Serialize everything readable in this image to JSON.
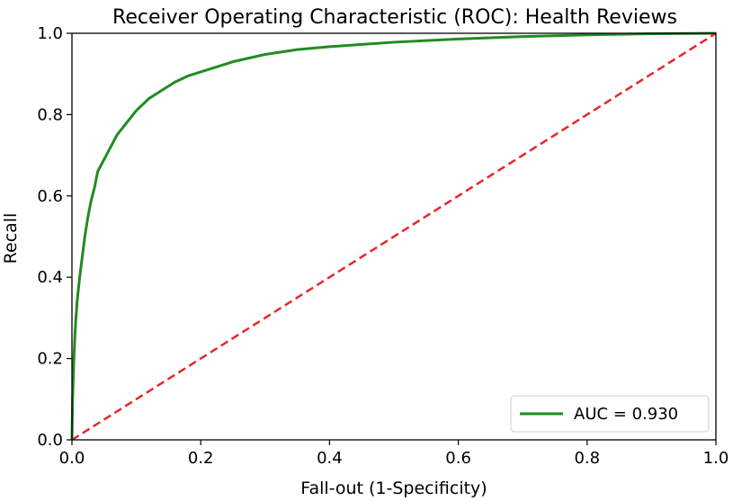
{
  "chart_data": {
    "type": "line",
    "title": "Receiver Operating Characteristic (ROC): Health Reviews",
    "xlabel": "Fall-out (1-Specificity)",
    "ylabel": "Recall",
    "xlim": [
      0.0,
      1.0
    ],
    "ylim": [
      0.0,
      1.0
    ],
    "xticks": [
      "0.0",
      "0.2",
      "0.4",
      "0.6",
      "0.8",
      "1.0"
    ],
    "yticks": [
      "0.0",
      "0.2",
      "0.4",
      "0.6",
      "0.8",
      "1.0"
    ],
    "grid": false,
    "legend_position": "lower-right",
    "series": [
      {
        "name": "AUC = 0.930",
        "color": "#228b22",
        "style": "solid",
        "x": [
          0.0,
          0.001,
          0.003,
          0.005,
          0.008,
          0.012,
          0.016,
          0.02,
          0.025,
          0.03,
          0.035,
          0.04,
          0.05,
          0.06,
          0.07,
          0.08,
          0.09,
          0.1,
          0.12,
          0.14,
          0.16,
          0.18,
          0.2,
          0.25,
          0.3,
          0.35,
          0.4,
          0.5,
          0.6,
          0.7,
          0.8,
          0.9,
          1.0
        ],
        "y": [
          0.0,
          0.1,
          0.2,
          0.27,
          0.34,
          0.4,
          0.45,
          0.5,
          0.55,
          0.59,
          0.62,
          0.66,
          0.69,
          0.72,
          0.75,
          0.77,
          0.79,
          0.81,
          0.84,
          0.86,
          0.88,
          0.895,
          0.905,
          0.93,
          0.948,
          0.96,
          0.967,
          0.978,
          0.986,
          0.992,
          0.996,
          0.999,
          1.0
        ]
      },
      {
        "name": "",
        "color": "#e8262b",
        "style": "dashed",
        "x": [
          0.0,
          1.0
        ],
        "y": [
          0.0,
          1.0
        ]
      }
    ],
    "legend": [
      {
        "label": "AUC = 0.930",
        "color": "#228b22"
      }
    ]
  }
}
